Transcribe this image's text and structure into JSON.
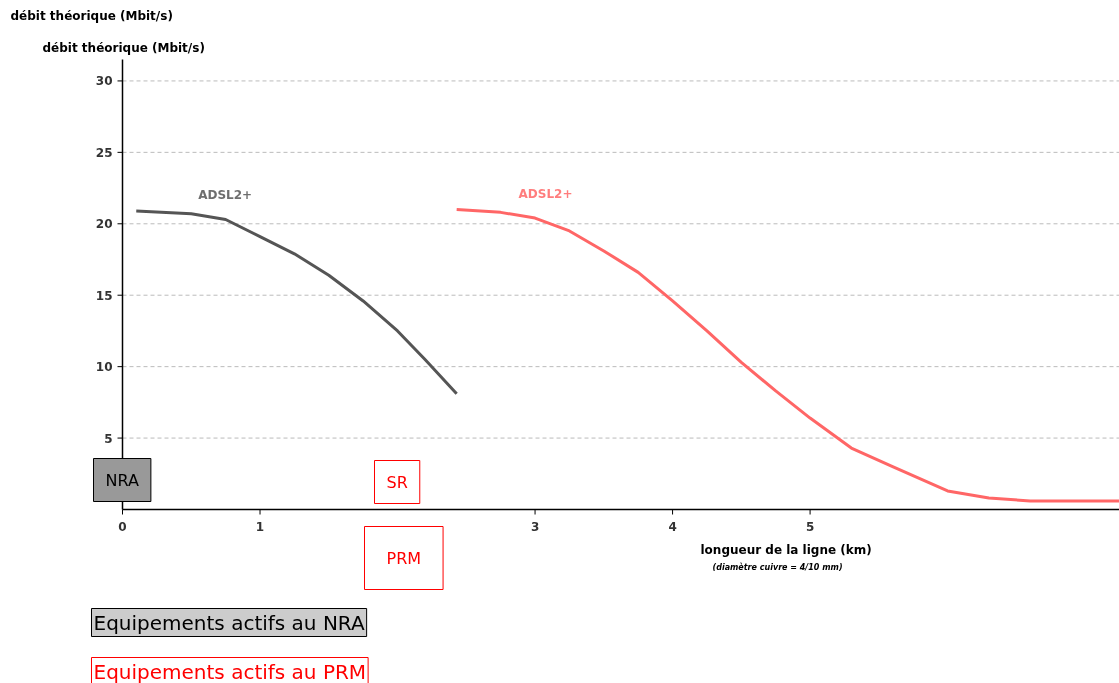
{
  "chart_data": {
    "type": "line",
    "title": "débit théorique (Mbit/s)",
    "ylabel": "débit théorique (Mbit/s)",
    "xlabel": "longueur de la ligne (km)",
    "annotations": [
      "(diamètre cuivre = 4/10 mm)",
      "NRA",
      "SR",
      "PRM",
      "Equipements actifs au NRA",
      "Equipements actifs au PRM"
    ],
    "series": [
      {
        "name": "ADSL2+",
        "color": "#555555",
        "x": [
          0.1,
          0.5,
          0.75,
          1.0,
          1.25,
          1.5,
          1.75,
          2.0,
          2.2,
          2.43
        ],
        "values": [
          20.9,
          20.7,
          20.3,
          19.1,
          17.9,
          16.4,
          14.6,
          12.5,
          10.5,
          8.1
        ]
      },
      {
        "name": "ADSL2+",
        "color": "#ff6666",
        "x": [
          2.43,
          2.75,
          3.0,
          3.25,
          3.5,
          3.75,
          4.0,
          4.25,
          4.5,
          4.75,
          5.0,
          5.3,
          5.6,
          6.0,
          6.3,
          6.6,
          7.25
        ],
        "values": [
          21.0,
          20.8,
          20.4,
          19.5,
          18.1,
          16.6,
          14.6,
          12.5,
          10.3,
          8.3,
          6.4,
          4.3,
          3.0,
          1.3,
          0.8,
          0.6,
          0.6
        ]
      }
    ],
    "xlim": [
      0,
      7.25
    ],
    "ylim": [
      0,
      31.5
    ],
    "xticks": [
      0,
      1,
      3,
      4,
      5
    ],
    "yticks": [
      5,
      10,
      15,
      20,
      25,
      30
    ],
    "grid": "y",
    "line_style": "solid",
    "marker": "none"
  }
}
